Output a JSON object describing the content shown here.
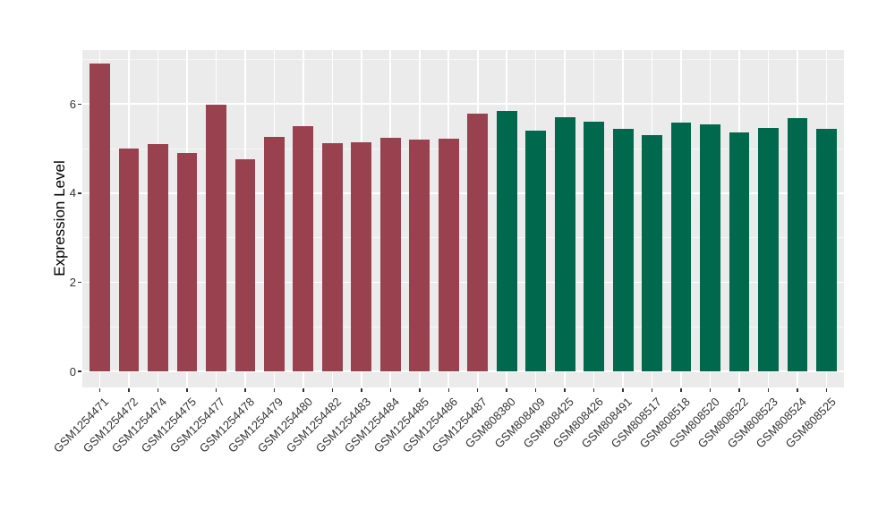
{
  "chart_data": {
    "type": "bar",
    "title": "",
    "xlabel": "",
    "ylabel": "Expression Level",
    "legend_position": "none",
    "grid": {
      "panel_bg": "#ebebeb",
      "major_color": "#ffffff",
      "minor_color": "#ffffff",
      "grid_on": true
    },
    "y_major_ticks": [
      0,
      2,
      4,
      6
    ],
    "y_minor_ticks": [
      1,
      3,
      5,
      7
    ],
    "ylim": [
      -0.36,
      7.21
    ],
    "categories": [
      "GSM1254471",
      "GSM1254472",
      "GSM1254474",
      "GSM1254475",
      "GSM1254477",
      "GSM1254478",
      "GSM1254479",
      "GSM1254480",
      "GSM1254482",
      "GSM1254483",
      "GSM1254484",
      "GSM1254485",
      "GSM1254486",
      "GSM1254487",
      "GSM808380",
      "GSM808409",
      "GSM808425",
      "GSM808426",
      "GSM808491",
      "GSM808517",
      "GSM808518",
      "GSM808520",
      "GSM808522",
      "GSM808523",
      "GSM808524",
      "GSM808525"
    ],
    "values": [
      6.9,
      5.01,
      5.1,
      4.91,
      5.98,
      4.77,
      5.27,
      5.51,
      5.13,
      5.15,
      5.25,
      5.21,
      5.23,
      5.78,
      5.85,
      5.41,
      5.71,
      5.61,
      5.44,
      5.31,
      5.59,
      5.55,
      5.37,
      5.47,
      5.69,
      5.45
    ],
    "groups": [
      "group1",
      "group1",
      "group1",
      "group1",
      "group1",
      "group1",
      "group1",
      "group1",
      "group1",
      "group1",
      "group1",
      "group1",
      "group1",
      "group1",
      "group2",
      "group2",
      "group2",
      "group2",
      "group2",
      "group2",
      "group2",
      "group2",
      "group2",
      "group2",
      "group2",
      "group2"
    ],
    "group_colors": {
      "group1": "#9a4150",
      "group2": "#00694d"
    }
  }
}
